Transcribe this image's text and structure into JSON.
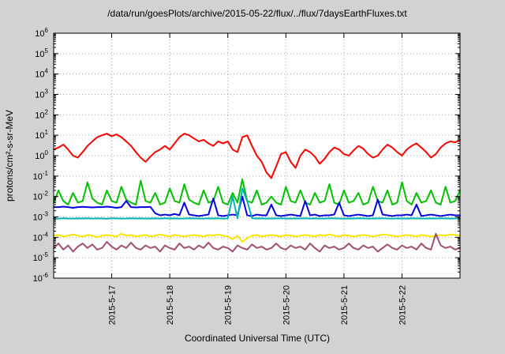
{
  "window": {
    "background_color": "#d2d2d2",
    "plot_background_color": "#ffffff"
  },
  "chart_data": {
    "type": "line",
    "title": "/data/run/goesPlots/archive/2015-05-22/flux/../flux/7daysEarthFluxes.txt",
    "xlabel": "Coordinated Universal Time (UTC)",
    "ylabel": "protons/cm²-s-sr-MeV",
    "grid": true,
    "legend": "none",
    "y_axis": {
      "scale": "log",
      "min_exponent": -6,
      "max_exponent": 6,
      "tick_exponents": [
        -6,
        -5,
        -4,
        -3,
        -2,
        -1,
        0,
        1,
        2,
        3,
        4,
        5,
        6
      ]
    },
    "x_axis": {
      "start_hour": 0,
      "end_hour": 168,
      "step_hours": 2,
      "ticks": [
        {
          "hour": 24,
          "label": "2015-5-17"
        },
        {
          "hour": 48,
          "label": "2015-5-18"
        },
        {
          "hour": 72,
          "label": "2015-5-19"
        },
        {
          "hour": 96,
          "label": "2015-5-20"
        },
        {
          "hour": 120,
          "label": "2015-5-21"
        },
        {
          "hour": 144,
          "label": "2015-5-22"
        }
      ]
    },
    "series": [
      {
        "name": "red",
        "color": "#ff0000",
        "values": [
          2.0,
          2.5,
          3.5,
          2.0,
          1.0,
          0.8,
          1.5,
          3.0,
          5.0,
          8.0,
          10,
          12,
          9,
          11,
          8,
          5,
          3,
          1.5,
          0.8,
          0.5,
          0.9,
          1.5,
          2.0,
          3.0,
          2.0,
          4.0,
          8.0,
          12,
          10,
          7,
          5,
          6,
          4,
          3,
          5,
          4,
          5,
          2,
          1.5,
          8,
          10,
          3,
          1,
          0.5,
          0.15,
          0.08,
          0.3,
          1.2,
          1.5,
          0.5,
          0.25,
          1.0,
          2.0,
          1.5,
          0.9,
          0.4,
          0.7,
          1.5,
          2.5,
          2.0,
          1.2,
          1.0,
          1.8,
          3.0,
          2.2,
          1.2,
          0.8,
          1.0,
          2.0,
          3.5,
          2.5,
          1.5,
          1.0,
          2.0,
          3.0,
          4.0,
          2.5,
          1.5,
          0.8,
          1.2,
          2.5,
          4.0,
          5.0,
          4.5,
          6.0
        ]
      },
      {
        "name": "green",
        "color": "#00c000",
        "values": [
          0.005,
          0.02,
          0.006,
          0.004,
          0.015,
          0.005,
          0.006,
          0.05,
          0.008,
          0.005,
          0.004,
          0.02,
          0.006,
          0.005,
          0.03,
          0.007,
          0.005,
          0.004,
          0.06,
          0.006,
          0.005,
          0.015,
          0.004,
          0.005,
          0.025,
          0.006,
          0.005,
          0.04,
          0.007,
          0.005,
          0.004,
          0.02,
          0.005,
          0.006,
          0.03,
          0.005,
          0.004,
          0.015,
          0.005,
          0.07,
          0.006,
          0.005,
          0.02,
          0.004,
          0.005,
          0.01,
          0.005,
          0.004,
          0.03,
          0.006,
          0.005,
          0.02,
          0.005,
          0.004,
          0.015,
          0.005,
          0.006,
          0.04,
          0.005,
          0.004,
          0.02,
          0.005,
          0.006,
          0.015,
          0.004,
          0.005,
          0.03,
          0.006,
          0.005,
          0.02,
          0.004,
          0.005,
          0.05,
          0.006,
          0.004,
          0.015,
          0.005,
          0.006,
          0.02,
          0.005,
          0.004,
          0.03,
          0.005,
          0.006,
          0.02
        ]
      },
      {
        "name": "blue",
        "color": "#0000dd",
        "values": [
          0.003,
          0.003,
          0.0032,
          0.003,
          0.0028,
          0.003,
          0.0031,
          0.003,
          0.0029,
          0.003,
          0.003,
          0.0032,
          0.003,
          0.0028,
          0.003,
          0.006,
          0.003,
          0.0029,
          0.003,
          0.003,
          0.0031,
          0.0015,
          0.0012,
          0.0013,
          0.0012,
          0.0014,
          0.0012,
          0.005,
          0.0013,
          0.0012,
          0.0011,
          0.0012,
          0.0013,
          0.008,
          0.0012,
          0.0011,
          0.0012,
          0.0013,
          0.0012,
          0.01,
          0.0012,
          0.0011,
          0.0013,
          0.0012,
          0.0012,
          0.004,
          0.0012,
          0.0011,
          0.0012,
          0.0013,
          0.0012,
          0.0011,
          0.006,
          0.0012,
          0.0013,
          0.0011,
          0.0012,
          0.0012,
          0.0013,
          0.005,
          0.0012,
          0.0011,
          0.0012,
          0.0013,
          0.0012,
          0.0011,
          0.0012,
          0.007,
          0.0013,
          0.0012,
          0.0011,
          0.0012,
          0.0012,
          0.0013,
          0.0012,
          0.004,
          0.0011,
          0.0012,
          0.0013,
          0.0012,
          0.0011,
          0.0012,
          0.0013,
          0.0012,
          0.0012
        ]
      },
      {
        "name": "cyan",
        "color": "#00b2b2",
        "values": [
          0.00085,
          0.00082,
          0.00086,
          0.00084,
          0.00083,
          0.00085,
          0.00084,
          0.00086,
          0.00083,
          0.00085,
          0.00084,
          0.00082,
          0.00086,
          0.00085,
          0.00083,
          0.00084,
          0.00086,
          0.00084,
          0.00085,
          0.00083,
          0.00084,
          0.00085,
          0.00083,
          0.00086,
          0.00084,
          0.00085,
          0.00083,
          0.00084,
          0.00086,
          0.00085,
          0.00084,
          0.00083,
          0.00085,
          0.00084,
          0.00086,
          0.00083,
          0.00085,
          0.01,
          0.00085,
          0.025,
          0.006,
          0.00086,
          0.00084,
          0.00085,
          0.00083,
          0.00084,
          0.00085,
          0.00086,
          0.00084,
          0.00083,
          0.00085,
          0.00084,
          0.00086,
          0.00083,
          0.00085,
          0.00084,
          0.00083,
          0.00086,
          0.00085,
          0.00084,
          0.00083,
          0.00085,
          0.00084,
          0.00086,
          0.00085,
          0.00083,
          0.00084,
          0.00085,
          0.00086,
          0.00084,
          0.00083,
          0.00085,
          0.00084,
          0.00083,
          0.00086,
          0.00085,
          0.00084,
          0.00083,
          0.00085,
          0.00084,
          0.00086,
          0.00085,
          0.00083,
          0.00084,
          0.00085
        ]
      },
      {
        "name": "yellow",
        "color": "#ffe600",
        "values": [
          0.00012,
          0.00013,
          0.00011,
          0.00012,
          0.00014,
          0.00012,
          0.00011,
          0.00013,
          0.00012,
          0.0001,
          0.00012,
          0.00013,
          0.00012,
          0.00011,
          0.00015,
          0.00012,
          0.00013,
          0.00011,
          0.00012,
          0.00013,
          0.00011,
          0.00012,
          0.00014,
          0.00012,
          0.00011,
          0.00013,
          0.00012,
          0.00011,
          0.00012,
          0.00013,
          0.00012,
          0.00011,
          0.00013,
          0.00012,
          0.00014,
          0.00012,
          0.00011,
          8e-05,
          0.00012,
          6e-05,
          9e-05,
          0.00012,
          0.00013,
          0.00011,
          0.00012,
          0.00013,
          0.00012,
          0.00011,
          0.00013,
          0.00012,
          0.00011,
          0.00012,
          0.00013,
          0.00012,
          0.00011,
          0.00013,
          0.00012,
          0.00014,
          0.00012,
          0.00011,
          0.00013,
          0.00012,
          0.00011,
          0.00012,
          0.00013,
          0.00012,
          0.00011,
          0.00012,
          0.00014,
          0.00013,
          0.00012,
          0.00011,
          0.00012,
          0.00013,
          0.00012,
          0.00011,
          0.00013,
          0.00012,
          0.00011,
          0.00012,
          0.00013,
          0.00012,
          0.00014,
          0.00013,
          0.00012
        ]
      },
      {
        "name": "purple",
        "color": "#a0506e",
        "values": [
          3e-05,
          5e-05,
          2.5e-05,
          4e-05,
          2e-05,
          3.5e-05,
          5e-05,
          3e-05,
          4.5e-05,
          2.5e-05,
          3e-05,
          6e-05,
          3.5e-05,
          2.5e-05,
          4e-05,
          3e-05,
          5.5e-05,
          3e-05,
          2.5e-05,
          4e-05,
          3e-05,
          3.5e-05,
          2e-05,
          4e-05,
          3e-05,
          2.5e-05,
          5e-05,
          3e-05,
          3.5e-05,
          2.5e-05,
          4e-05,
          3e-05,
          5.5e-05,
          3e-05,
          2.5e-05,
          3.5e-05,
          3e-05,
          2e-05,
          4e-05,
          3e-05,
          2.5e-05,
          4.5e-05,
          3e-05,
          3.5e-05,
          2.5e-05,
          3e-05,
          5e-05,
          3e-05,
          2.5e-05,
          4e-05,
          3e-05,
          3.5e-05,
          2.5e-05,
          5e-05,
          3e-05,
          2e-05,
          4e-05,
          3e-05,
          3.5e-05,
          2.5e-05,
          3e-05,
          5e-05,
          3e-05,
          2.5e-05,
          4e-05,
          3e-05,
          3.5e-05,
          2e-05,
          3e-05,
          4.5e-05,
          3e-05,
          2.5e-05,
          4e-05,
          3e-05,
          3.5e-05,
          2.5e-05,
          5e-05,
          3e-05,
          2.5e-05,
          0.00015,
          4e-05,
          3e-05,
          3.5e-05,
          2.5e-05,
          3e-05
        ]
      }
    ]
  }
}
